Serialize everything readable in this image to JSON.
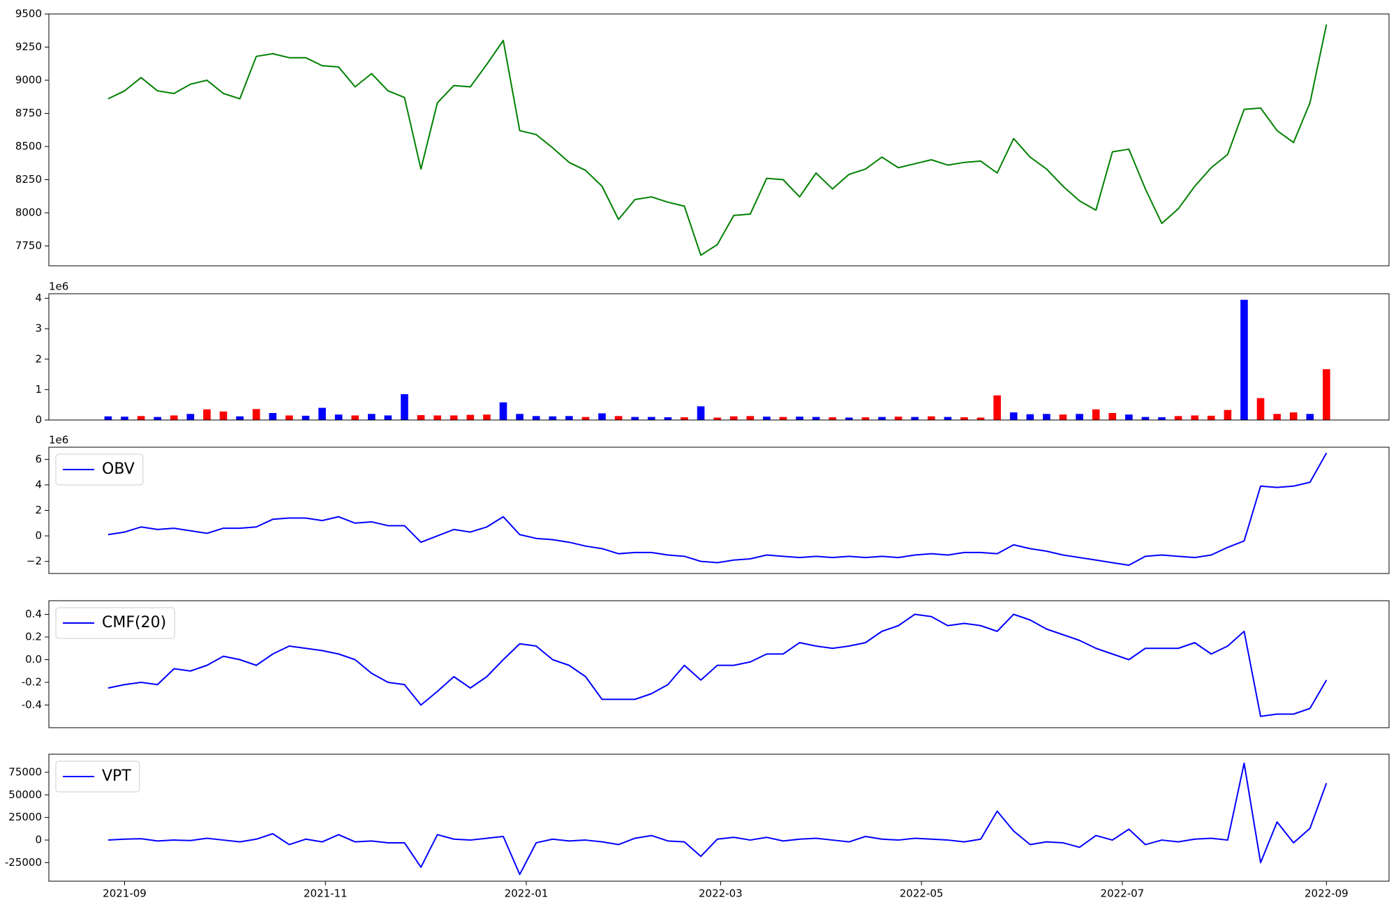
{
  "chart_data": [
    {
      "type": "line",
      "x": [
        18866,
        18871,
        18876,
        18881,
        18886,
        18891,
        18896,
        18901,
        18906,
        18911,
        18916,
        18921,
        18926,
        18931,
        18936,
        18941,
        18946,
        18951,
        18956,
        18961,
        18966,
        18971,
        18976,
        18981,
        18986,
        18991,
        18996,
        19001,
        19006,
        19011,
        19016,
        19021,
        19026,
        19031,
        19036,
        19041,
        19046,
        19051,
        19056,
        19061,
        19066,
        19071,
        19076,
        19081,
        19086,
        19091,
        19096,
        19101,
        19106,
        19111,
        19116,
        19121,
        19126,
        19131,
        19136,
        19141,
        19146,
        19151,
        19156,
        19161,
        19166,
        19171,
        19176,
        19181,
        19186,
        19191,
        19196,
        19201,
        19206,
        19211,
        19216,
        19221,
        19226,
        19231,
        19236
      ],
      "color": "#008000",
      "values": [
        8860,
        8920,
        9020,
        8920,
        8900,
        8970,
        9000,
        8900,
        8860,
        9180,
        9200,
        9170,
        9170,
        9110,
        9100,
        8950,
        9050,
        8920,
        8870,
        8330,
        8830,
        8960,
        8950,
        9120,
        9300,
        8620,
        8590,
        8490,
        8380,
        8320,
        8200,
        7950,
        8100,
        8120,
        8080,
        8050,
        7680,
        7760,
        7980,
        7990,
        8260,
        8250,
        8120,
        8300,
        8180,
        8290,
        8330,
        8420,
        8340,
        8370,
        8400,
        8360,
        8380,
        8390,
        8300,
        8560,
        8420,
        8330,
        8200,
        8090,
        8020,
        8460,
        8480,
        8180,
        7920,
        8030,
        8200,
        8340,
        8440,
        8780,
        8790,
        8620,
        8530,
        8830,
        9420
      ],
      "xlim": [
        18848,
        19255
      ],
      "ylim": [
        7600,
        9500
      ],
      "yticks": [
        7750,
        8000,
        8250,
        8500,
        8750,
        9000,
        9250,
        9500
      ]
    },
    {
      "type": "bar",
      "x": [
        18866,
        18871,
        18876,
        18881,
        18886,
        18891,
        18896,
        18901,
        18906,
        18911,
        18916,
        18921,
        18926,
        18931,
        18936,
        18941,
        18946,
        18951,
        18956,
        18961,
        18966,
        18971,
        18976,
        18981,
        18986,
        18991,
        18996,
        19001,
        19006,
        19011,
        19016,
        19021,
        19026,
        19031,
        19036,
        19041,
        19046,
        19051,
        19056,
        19061,
        19066,
        19071,
        19076,
        19081,
        19086,
        19091,
        19096,
        19101,
        19106,
        19111,
        19116,
        19121,
        19126,
        19131,
        19136,
        19141,
        19146,
        19151,
        19156,
        19161,
        19166,
        19171,
        19176,
        19181,
        19186,
        19191,
        19196,
        19201,
        19206,
        19211,
        19216,
        19221,
        19226,
        19231,
        19236
      ],
      "values": [
        120000,
        110000,
        130000,
        100000,
        150000,
        200000,
        350000,
        280000,
        120000,
        360000,
        230000,
        150000,
        140000,
        400000,
        180000,
        150000,
        200000,
        150000,
        850000,
        160000,
        150000,
        150000,
        170000,
        180000,
        580000,
        200000,
        130000,
        120000,
        130000,
        100000,
        220000,
        130000,
        100000,
        100000,
        90000,
        90000,
        450000,
        80000,
        120000,
        130000,
        110000,
        100000,
        110000,
        100000,
        90000,
        80000,
        90000,
        100000,
        110000,
        100000,
        120000,
        100000,
        90000,
        80000,
        810000,
        250000,
        190000,
        200000,
        180000,
        200000,
        350000,
        230000,
        180000,
        100000,
        90000,
        130000,
        150000,
        140000,
        330000,
        3950000,
        720000,
        200000,
        250000,
        200000,
        1670000
      ],
      "colors": [
        "#0000ff",
        "#0000ff",
        "#ff0000",
        "#0000ff",
        "#ff0000",
        "#0000ff",
        "#ff0000",
        "#ff0000",
        "#0000ff",
        "#ff0000",
        "#0000ff",
        "#ff0000",
        "#0000ff",
        "#0000ff",
        "#0000ff",
        "#ff0000",
        "#0000ff",
        "#0000ff",
        "#0000ff",
        "#ff0000",
        "#ff0000",
        "#ff0000",
        "#ff0000",
        "#ff0000",
        "#0000ff",
        "#0000ff",
        "#0000ff",
        "#0000ff",
        "#0000ff",
        "#ff0000",
        "#0000ff",
        "#ff0000",
        "#0000ff",
        "#0000ff",
        "#0000ff",
        "#ff0000",
        "#0000ff",
        "#ff0000",
        "#ff0000",
        "#ff0000",
        "#0000ff",
        "#ff0000",
        "#0000ff",
        "#0000ff",
        "#ff0000",
        "#0000ff",
        "#ff0000",
        "#0000ff",
        "#ff0000",
        "#0000ff",
        "#ff0000",
        "#0000ff",
        "#ff0000",
        "#ff0000",
        "#ff0000",
        "#0000ff",
        "#0000ff",
        "#0000ff",
        "#ff0000",
        "#0000ff",
        "#ff0000",
        "#ff0000",
        "#0000ff",
        "#0000ff",
        "#0000ff",
        "#ff0000",
        "#ff0000",
        "#ff0000",
        "#ff0000",
        "#0000ff",
        "#ff0000",
        "#ff0000",
        "#ff0000",
        "#0000ff",
        "#ff0000"
      ],
      "offset_label": "1e6",
      "xlim": [
        18848,
        19255
      ],
      "ylim": [
        0,
        4150000
      ],
      "yticks": [
        0,
        {
          "value": 1000000,
          "label": "1"
        },
        {
          "value": 2000000,
          "label": "2"
        },
        {
          "value": 3000000,
          "label": "3"
        },
        {
          "value": 4000000,
          "label": "4"
        }
      ]
    },
    {
      "type": "line",
      "x": [
        18866,
        18871,
        18876,
        18881,
        18886,
        18891,
        18896,
        18901,
        18906,
        18911,
        18916,
        18921,
        18926,
        18931,
        18936,
        18941,
        18946,
        18951,
        18956,
        18961,
        18966,
        18971,
        18976,
        18981,
        18986,
        18991,
        18996,
        19001,
        19006,
        19011,
        19016,
        19021,
        19026,
        19031,
        19036,
        19041,
        19046,
        19051,
        19056,
        19061,
        19066,
        19071,
        19076,
        19081,
        19086,
        19091,
        19096,
        19101,
        19106,
        19111,
        19116,
        19121,
        19126,
        19131,
        19136,
        19141,
        19146,
        19151,
        19156,
        19161,
        19166,
        19171,
        19176,
        19181,
        19186,
        19191,
        19196,
        19201,
        19206,
        19211,
        19216,
        19221,
        19226,
        19231,
        19236
      ],
      "series": [
        {
          "name": "OBV",
          "color": "#0000ff",
          "values": [
            100000,
            300000,
            700000,
            500000,
            600000,
            400000,
            200000,
            600000,
            600000,
            700000,
            1300000,
            1400000,
            1400000,
            1200000,
            1500000,
            1000000,
            1100000,
            800000,
            800000,
            -500000,
            0,
            500000,
            300000,
            700000,
            1500000,
            100000,
            -200000,
            -300000,
            -500000,
            -800000,
            -1000000,
            -1400000,
            -1300000,
            -1300000,
            -1500000,
            -1600000,
            -2000000,
            -2100000,
            -1900000,
            -1800000,
            -1500000,
            -1600000,
            -1700000,
            -1600000,
            -1700000,
            -1600000,
            -1700000,
            -1600000,
            -1700000,
            -1500000,
            -1400000,
            -1500000,
            -1300000,
            -1300000,
            -1400000,
            -700000,
            -1000000,
            -1200000,
            -1500000,
            -1700000,
            -1900000,
            -2100000,
            -2300000,
            -1600000,
            -1500000,
            -1600000,
            -1700000,
            -1500000,
            -900000,
            -400000,
            3900000,
            3800000,
            3900000,
            4200000,
            6500000
          ]
        }
      ],
      "legend": "upper left",
      "offset_label": "1e6",
      "xlim": [
        18848,
        19255
      ],
      "ylim": [
        -2950000,
        6950000
      ],
      "yticks": [
        {
          "value": -2000000,
          "label": "−2"
        },
        0,
        {
          "value": 2000000,
          "label": "2"
        },
        {
          "value": 4000000,
          "label": "4"
        },
        {
          "value": 6000000,
          "label": "6"
        }
      ]
    },
    {
      "type": "line",
      "x": [
        18866,
        18871,
        18876,
        18881,
        18886,
        18891,
        18896,
        18901,
        18906,
        18911,
        18916,
        18921,
        18926,
        18931,
        18936,
        18941,
        18946,
        18951,
        18956,
        18961,
        18966,
        18971,
        18976,
        18981,
        18986,
        18991,
        18996,
        19001,
        19006,
        19011,
        19016,
        19021,
        19026,
        19031,
        19036,
        19041,
        19046,
        19051,
        19056,
        19061,
        19066,
        19071,
        19076,
        19081,
        19086,
        19091,
        19096,
        19101,
        19106,
        19111,
        19116,
        19121,
        19126,
        19131,
        19136,
        19141,
        19146,
        19151,
        19156,
        19161,
        19166,
        19171,
        19176,
        19181,
        19186,
        19191,
        19196,
        19201,
        19206,
        19211,
        19216,
        19221,
        19226,
        19231,
        19236
      ],
      "series": [
        {
          "name": "CMF(20)",
          "color": "#0000ff",
          "values": [
            -0.25,
            -0.22,
            -0.2,
            -0.22,
            -0.08,
            -0.1,
            -0.05,
            0.03,
            0.0,
            -0.05,
            0.05,
            0.12,
            0.1,
            0.08,
            0.05,
            0.0,
            -0.12,
            -0.2,
            -0.22,
            -0.4,
            -0.28,
            -0.15,
            -0.25,
            -0.15,
            0.0,
            0.14,
            0.12,
            0.0,
            -0.05,
            -0.15,
            -0.35,
            -0.35,
            -0.35,
            -0.3,
            -0.22,
            -0.05,
            -0.18,
            -0.05,
            -0.05,
            -0.02,
            0.05,
            0.05,
            0.15,
            0.12,
            0.1,
            0.12,
            0.15,
            0.25,
            0.3,
            0.4,
            0.38,
            0.3,
            0.32,
            0.3,
            0.25,
            0.4,
            0.35,
            0.27,
            0.22,
            0.17,
            0.1,
            0.05,
            0.0,
            0.1,
            0.1,
            0.1,
            0.15,
            0.05,
            0.12,
            0.25,
            -0.5,
            -0.48,
            -0.48,
            -0.43,
            -0.18
          ]
        }
      ],
      "legend": "upper left",
      "xlim": [
        18848,
        19255
      ],
      "ylim": [
        -0.6,
        0.52
      ],
      "yticks": [
        -0.4,
        -0.2,
        {
          "value": 0,
          "label": "0.0"
        },
        0.2,
        0.4
      ]
    },
    {
      "type": "line",
      "x": [
        18866,
        18871,
        18876,
        18881,
        18886,
        18891,
        18896,
        18901,
        18906,
        18911,
        18916,
        18921,
        18926,
        18931,
        18936,
        18941,
        18946,
        18951,
        18956,
        18961,
        18966,
        18971,
        18976,
        18981,
        18986,
        18991,
        18996,
        19001,
        19006,
        19011,
        19016,
        19021,
        19026,
        19031,
        19036,
        19041,
        19046,
        19051,
        19056,
        19061,
        19066,
        19071,
        19076,
        19081,
        19086,
        19091,
        19096,
        19101,
        19106,
        19111,
        19116,
        19121,
        19126,
        19131,
        19136,
        19141,
        19146,
        19151,
        19156,
        19161,
        19166,
        19171,
        19176,
        19181,
        19186,
        19191,
        19196,
        19201,
        19206,
        19211,
        19216,
        19221,
        19226,
        19231,
        19236
      ],
      "series": [
        {
          "name": "VPT",
          "color": "#0000ff",
          "values": [
            0,
            1000,
            1500,
            -1000,
            0,
            -500,
            2000,
            0,
            -2000,
            1000,
            7000,
            -5000,
            1000,
            -2000,
            6000,
            -2000,
            -1000,
            -3000,
            -3000,
            -30000,
            6000,
            1000,
            0,
            2000,
            4000,
            -38000,
            -3000,
            1000,
            -1000,
            0,
            -2000,
            -5000,
            2000,
            5000,
            -1000,
            -2000,
            -18000,
            1000,
            3000,
            0,
            3000,
            -1000,
            1000,
            2000,
            0,
            -2000,
            4000,
            1000,
            0,
            2000,
            1000,
            0,
            -2000,
            1000,
            32000,
            10000,
            -5000,
            -2000,
            -3000,
            -8000,
            5000,
            0,
            12000,
            -5000,
            0,
            -2000,
            1000,
            2000,
            0,
            85000,
            -25000,
            20000,
            -3000,
            13000,
            63000
          ]
        }
      ],
      "legend": "upper left",
      "xlim": [
        18848,
        19255
      ],
      "ylim": [
        -45500,
        95000
      ],
      "yticks": [
        -25000,
        0,
        25000,
        50000,
        75000
      ],
      "xticks": [
        {
          "value": 18871,
          "label": "2021-09"
        },
        {
          "value": 18932,
          "label": "2021-11"
        },
        {
          "value": 18993,
          "label": "2022-01"
        },
        {
          "value": 19052,
          "label": "2022-03"
        },
        {
          "value": 19113,
          "label": "2022-05"
        },
        {
          "value": 19174,
          "label": "2022-07"
        },
        {
          "value": 19236,
          "label": "2022-09"
        }
      ]
    }
  ]
}
